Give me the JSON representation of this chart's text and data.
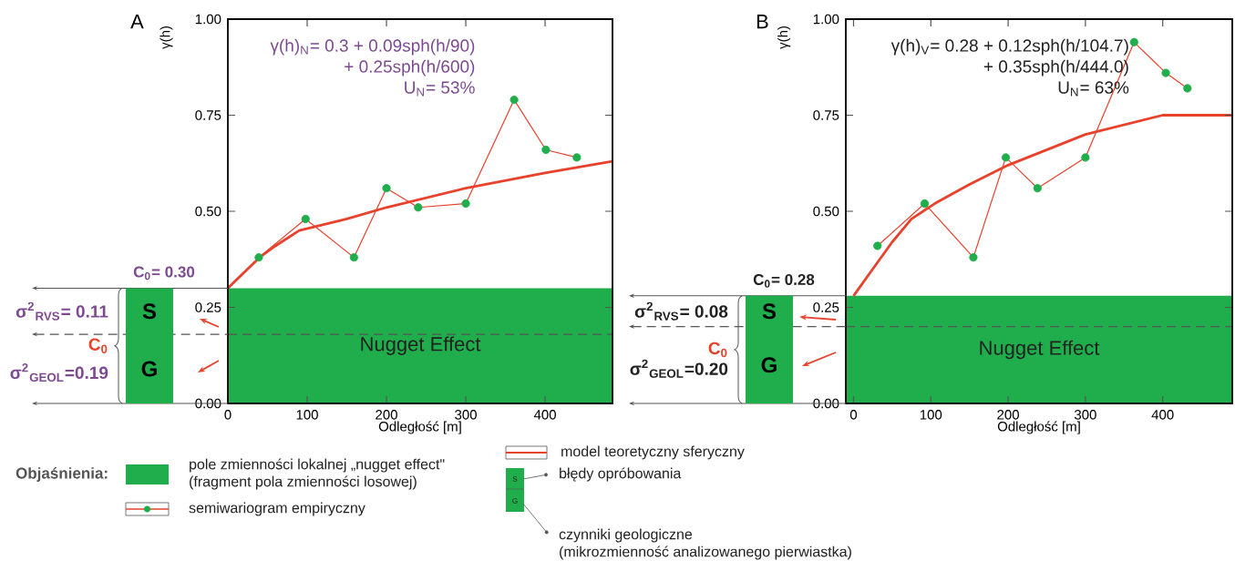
{
  "chart_data": [
    {
      "type": "line",
      "title": "A",
      "xlabel": "Odległość [m]",
      "ylabel": "γ(h)",
      "xlim": [
        0,
        485
      ],
      "ylim": [
        0,
        1
      ],
      "xticks": [
        0,
        100,
        200,
        300,
        400
      ],
      "yticks": [
        {
          "value": 0,
          "label": "0.00"
        },
        {
          "value": 0.25,
          "label": "0.25"
        },
        {
          "value": 0.5,
          "label": "0.50"
        },
        {
          "value": 0.75,
          "label": "0.75"
        },
        {
          "value": 1,
          "label": "1.00"
        }
      ],
      "series": [
        {
          "type": "line",
          "marker": "circle",
          "color": "#e8412c",
          "colors": [
            "#1fae4b",
            "#1fae4b",
            "#1fae4b",
            "#1fae4b",
            "#1fae4b",
            "#1fae4b",
            "#1fae4b",
            "#1fae4b",
            "#1fae4b"
          ],
          "x": [
            39,
            98,
            159,
            200,
            240,
            300,
            361,
            401,
            440
          ],
          "values": [
            0.38,
            0.48,
            0.38,
            0.56,
            0.51,
            0.52,
            0.79,
            0.66,
            0.64
          ]
        },
        {
          "type": "line",
          "marker": "none",
          "color": "#e8412c",
          "x": [
            0,
            20,
            40,
            60,
            90,
            150,
            200,
            300,
            400,
            485
          ],
          "values": [
            0.3,
            0.34,
            0.38,
            0.41,
            0.45,
            0.48,
            0.51,
            0.56,
            0.6,
            0.63
          ]
        }
      ],
      "bands": [
        {
          "axis": "y",
          "from": 0,
          "to": 0.3,
          "label": "Nugget Effect",
          "color": "#1fae4b"
        }
      ],
      "ref_lines": [
        {
          "axis": "y",
          "value": 0.18,
          "line_style": "dashed",
          "color": "#555555"
        }
      ],
      "annotations": [
        "γ(h)$_{N}$= 0.3 + 0.09sph(h/90)",
        "+ 0.25sph(h/600)",
        "U$_{N}$= 53%",
        "C$_{0}$= 0.30",
        "σ$^{2}$$_{RVS}$= 0.11",
        "σ$^{2}$$_{GEOL}$=0.19",
        "C$_{0}$",
        "S",
        "G"
      ]
    },
    {
      "type": "line",
      "title": "B",
      "xlabel": "Odległość [m]",
      "ylabel": "γ(h)",
      "xlim": [
        -10,
        490
      ],
      "ylim": [
        0,
        1
      ],
      "xticks": [
        0,
        100,
        200,
        300,
        400
      ],
      "yticks": [
        {
          "value": 0,
          "label": "0.00"
        },
        {
          "value": 0.25,
          "label": "0.25"
        },
        {
          "value": 0.5,
          "label": "0.50"
        },
        {
          "value": 0.75,
          "label": "0.75"
        },
        {
          "value": 1,
          "label": "1.00"
        }
      ],
      "series": [
        {
          "type": "line",
          "marker": "circle",
          "color": "#e8412c",
          "colors": [
            "#1fae4b",
            "#1fae4b",
            "#1fae4b",
            "#1fae4b",
            "#1fae4b",
            "#1fae4b",
            "#1fae4b",
            "#1fae4b",
            "#1fae4b"
          ],
          "x": [
            31,
            92,
            155,
            197,
            238,
            300,
            363,
            404,
            432
          ],
          "values": [
            0.41,
            0.52,
            0.38,
            0.64,
            0.56,
            0.64,
            0.94,
            0.86,
            0.82
          ]
        },
        {
          "type": "line",
          "marker": "none",
          "color": "#e8412c",
          "x": [
            0,
            25,
            50,
            75,
            105,
            150,
            200,
            300,
            400,
            444,
            490
          ],
          "values": [
            0.28,
            0.35,
            0.42,
            0.48,
            0.52,
            0.57,
            0.62,
            0.7,
            0.75,
            0.75,
            0.75
          ]
        }
      ],
      "bands": [
        {
          "axis": "y",
          "from": 0,
          "to": 0.28,
          "label": "Nugget Effect",
          "color": "#1fae4b"
        }
      ],
      "ref_lines": [
        {
          "axis": "y",
          "value": 0.2,
          "line_style": "dashed",
          "color": "#555555"
        }
      ],
      "annotations": [
        "γ(h)$_{V}$= 0.28 + 0.12sph(h/104.7)",
        "+ 0.35sph(h/444.0)",
        "U$_{N}$= 63%",
        "C$_{0}$= 0.28",
        "σ$^{2}$$_{RVS}$= 0.08",
        "σ$^{2}$$_{GEOL}$=0.20",
        "C$_{0}$",
        "S",
        "G"
      ]
    },
    {
      "type": "other",
      "title": "Objaśnienia:",
      "annotations": [
        "pole zmienności lokalnej „nugget effect\"",
        "(fragment pola zmienności losowej)",
        "semiwariogram empiryczny",
        "model teoretyczny sferyczny",
        "błędy opróbowania",
        "czynniki geologiczne",
        "(mikrozmienność analizowanego pierwiastka)",
        "S",
        "G"
      ]
    }
  ]
}
